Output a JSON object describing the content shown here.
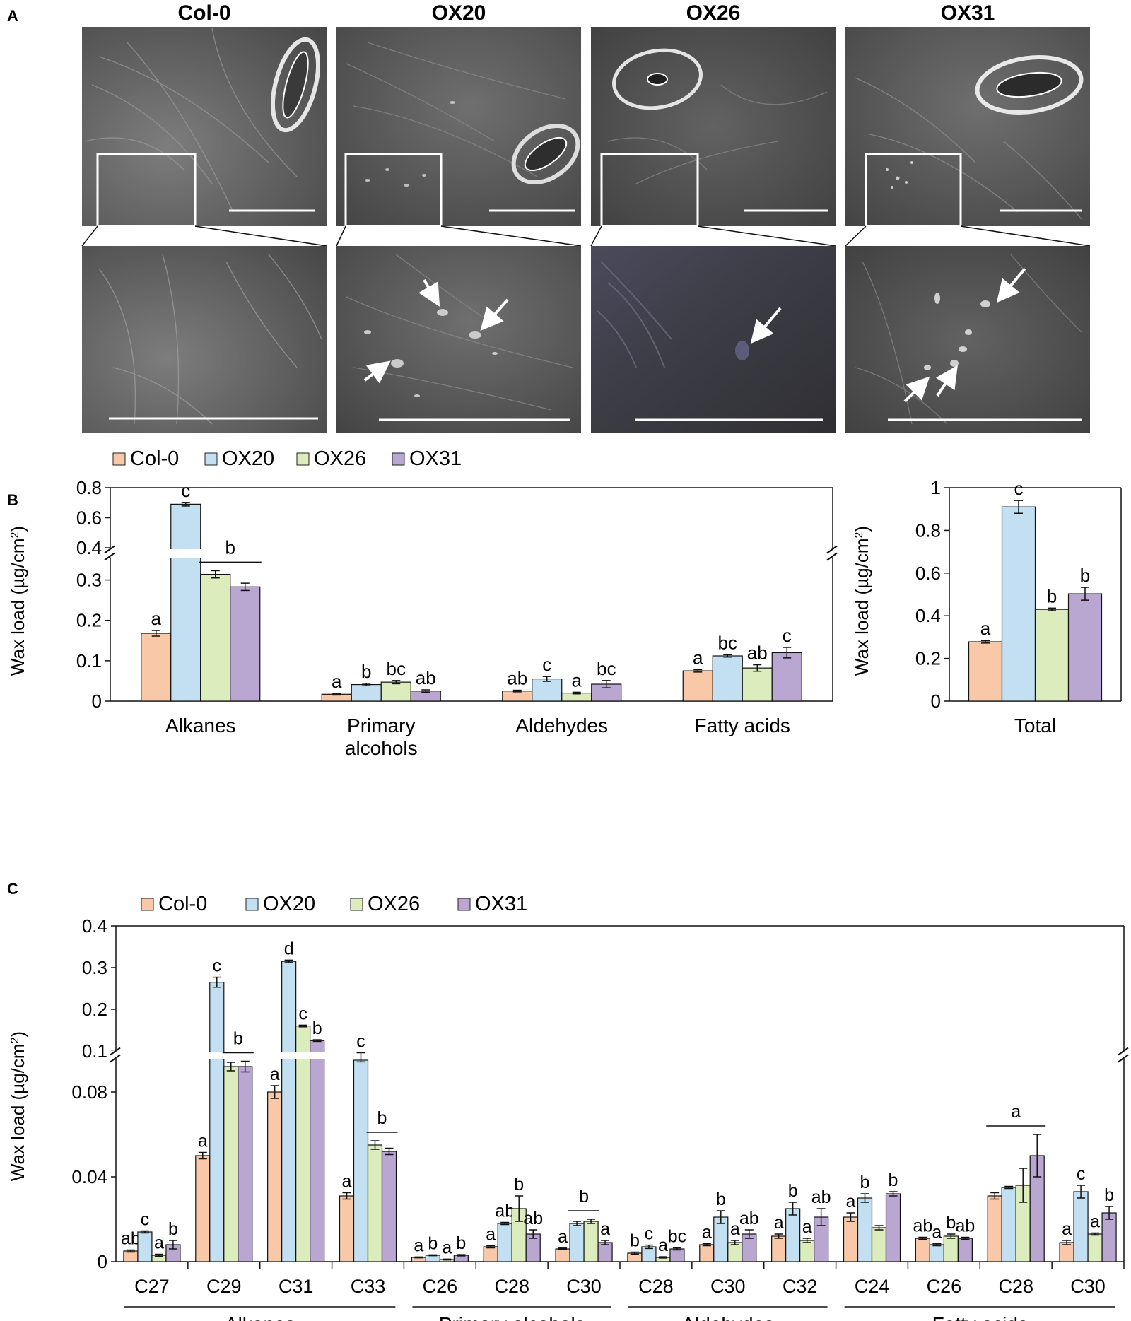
{
  "panel_letters": {
    "a": "A",
    "b": "B",
    "c": "C"
  },
  "micrographs": {
    "titles": [
      "Col-0",
      "OX20",
      "OX26",
      "OX31"
    ]
  },
  "colors": {
    "Col-0": "#f8c8a8",
    "OX20": "#c2e0f2",
    "OX26": "#dcecbc",
    "OX31": "#b9a7d2",
    "stroke": "#111111"
  },
  "chart_data": [
    {
      "id": "B-classes",
      "type": "bar",
      "legend": [
        "Col-0",
        "OX20",
        "OX26",
        "OX31"
      ],
      "ylabel": "Wax load (µg/cm²)",
      "ylim": [
        0,
        0.8
      ],
      "axis_break": {
        "lower": [
          0,
          0.35
        ],
        "upper": [
          0.4,
          0.8
        ]
      },
      "yticks_lower": [
        "0",
        "0.1",
        "0.2",
        "0.3"
      ],
      "yticks_upper": [
        "0.4",
        "0.6",
        "0.8"
      ],
      "categories": [
        "Alkanes",
        "Primary alcohols",
        "Aldehydes",
        "Fatty acids"
      ],
      "category_lines": [
        [
          "Alkanes"
        ],
        [
          "Primary",
          "alcohols"
        ],
        [
          "Aldehydes"
        ],
        [
          "Fatty acids"
        ]
      ],
      "series": [
        {
          "name": "Col-0",
          "values": [
            0.168,
            0.017,
            0.025,
            0.075
          ],
          "errors": [
            0.007,
            0.002,
            0.002,
            0.003
          ],
          "letters": [
            "a",
            "a",
            "ab",
            "a"
          ]
        },
        {
          "name": "OX20",
          "values": [
            0.69,
            0.041,
            0.055,
            0.112
          ],
          "errors": [
            0.012,
            0.003,
            0.006,
            0.003
          ],
          "letters": [
            "c",
            "b",
            "c",
            "bc"
          ]
        },
        {
          "name": "OX26",
          "values": [
            0.314,
            0.047,
            0.02,
            0.082
          ],
          "errors": [
            0.009,
            0.004,
            0.002,
            0.008
          ],
          "letters": [
            "",
            "bc",
            "a",
            "ab"
          ]
        },
        {
          "name": "OX31",
          "values": [
            0.283,
            0.025,
            0.042,
            0.12
          ],
          "errors": [
            0.009,
            0.003,
            0.009,
            0.013
          ],
          "letters": [
            "",
            "ab",
            "bc",
            "c"
          ]
        }
      ],
      "group_labels": [
        {
          "category": "Alkanes",
          "from": 2,
          "to": 3,
          "letter": "b"
        }
      ]
    },
    {
      "id": "B-total",
      "type": "bar",
      "ylabel": "Wax load (µg/cm²)",
      "ylim": [
        0,
        1
      ],
      "yticks": [
        "0",
        "0.2",
        "0.4",
        "0.6",
        "0.8",
        "1"
      ],
      "categories": [
        "Total"
      ],
      "series": [
        {
          "name": "Col-0",
          "values": [
            0.278
          ],
          "errors": [
            0.006
          ],
          "letters": [
            "a"
          ]
        },
        {
          "name": "OX20",
          "values": [
            0.91
          ],
          "errors": [
            0.03
          ],
          "letters": [
            "c"
          ]
        },
        {
          "name": "OX26",
          "values": [
            0.43
          ],
          "errors": [
            0.006
          ],
          "letters": [
            "b"
          ]
        },
        {
          "name": "OX31",
          "values": [
            0.503
          ],
          "errors": [
            0.03
          ],
          "letters": [
            "b"
          ]
        }
      ]
    },
    {
      "id": "C-chainlength",
      "type": "bar",
      "legend": [
        "Col-0",
        "OX20",
        "OX26",
        "OX31"
      ],
      "ylabel": "Wax load (µg/cm²)",
      "ylim": [
        0,
        0.4
      ],
      "axis_break": {
        "lower": [
          0,
          0.095
        ],
        "upper": [
          0.1,
          0.4
        ]
      },
      "yticks_lower": [
        "0",
        "0.04",
        "0.08"
      ],
      "yticks_upper": [
        "0.1",
        "0.2",
        "0.3",
        "0.4"
      ],
      "categories": [
        "C27",
        "C29",
        "C31",
        "C33",
        "C26",
        "C28",
        "C30",
        "C28",
        "C30",
        "C32",
        "C24",
        "C26",
        "C28",
        "C30"
      ],
      "class_groups": [
        {
          "label": "Alkanes",
          "from": 0,
          "to": 3
        },
        {
          "label": "Primary alcohols",
          "from": 4,
          "to": 6
        },
        {
          "label": "Aldehydes",
          "from": 7,
          "to": 9
        },
        {
          "label": "Fatty acids",
          "from": 10,
          "to": 13
        }
      ],
      "series": [
        {
          "name": "Col-0",
          "values": [
            0.005,
            0.05,
            0.08,
            0.031,
            0.002,
            0.007,
            0.006,
            0.004,
            0.008,
            0.012,
            0.021,
            0.011,
            0.031,
            0.009
          ],
          "errors": [
            0.0005,
            0.0015,
            0.003,
            0.0015,
            0.0002,
            0.0005,
            0.0004,
            0.0005,
            0.0005,
            0.001,
            0.002,
            0.0005,
            0.0015,
            0.001
          ],
          "letters": [
            "ab",
            "a",
            "a",
            "a",
            "a",
            "a",
            "a",
            "b",
            "a",
            "a",
            "a",
            "ab",
            "",
            "a"
          ]
        },
        {
          "name": "OX20",
          "values": [
            0.014,
            0.265,
            0.315,
            0.095,
            0.003,
            0.018,
            0.018,
            0.007,
            0.021,
            0.025,
            0.03,
            0.008,
            0.035,
            0.033
          ],
          "errors": [
            0.0005,
            0.012,
            0.003,
            0.0008,
            0.0002,
            0.0005,
            0.001,
            0.0008,
            0.003,
            0.003,
            0.002,
            0.0005,
            0.0005,
            0.003
          ],
          "letters": [
            "c",
            "c",
            "d",
            "c",
            "b",
            "ab",
            "",
            "c",
            "b",
            "b",
            "b",
            "a",
            "",
            "c"
          ]
        },
        {
          "name": "OX26",
          "values": [
            0.003,
            0.092,
            0.16,
            0.055,
            0.001,
            0.025,
            0.019,
            0.002,
            0.009,
            0.01,
            0.016,
            0.012,
            0.036,
            0.013
          ],
          "errors": [
            0.0005,
            0.002,
            0.002,
            0.002,
            0.0002,
            0.006,
            0.001,
            0.0003,
            0.001,
            0.001,
            0.001,
            0.001,
            0.008,
            0.0005
          ],
          "letters": [
            "a",
            "",
            "c",
            "",
            "a",
            "b",
            "",
            "a",
            "a",
            "a",
            "",
            "b",
            "",
            "a"
          ]
        },
        {
          "name": "OX31",
          "values": [
            0.008,
            0.092,
            0.125,
            0.052,
            0.003,
            0.013,
            0.009,
            0.006,
            0.013,
            0.021,
            0.032,
            0.011,
            0.05,
            0.023
          ],
          "errors": [
            0.002,
            0.0025,
            0.002,
            0.0015,
            0.0003,
            0.002,
            0.001,
            0.0005,
            0.002,
            0.004,
            0.001,
            0.0005,
            0.01,
            0.003
          ],
          "letters": [
            "b",
            "",
            "b",
            "",
            "b",
            "ab",
            "a",
            "bc",
            "ab",
            "ab",
            "b",
            "ab",
            "",
            "b"
          ]
        }
      ],
      "group_labels": [
        {
          "category": 1,
          "from": 2,
          "to": 3,
          "letter": "b"
        },
        {
          "category": 3,
          "from": 2,
          "to": 3,
          "letter": "b"
        },
        {
          "category": 6,
          "from": 1,
          "to": 2,
          "letter": "b"
        },
        {
          "category": 12,
          "from": 0,
          "to": 3,
          "letter": "a"
        }
      ]
    }
  ]
}
